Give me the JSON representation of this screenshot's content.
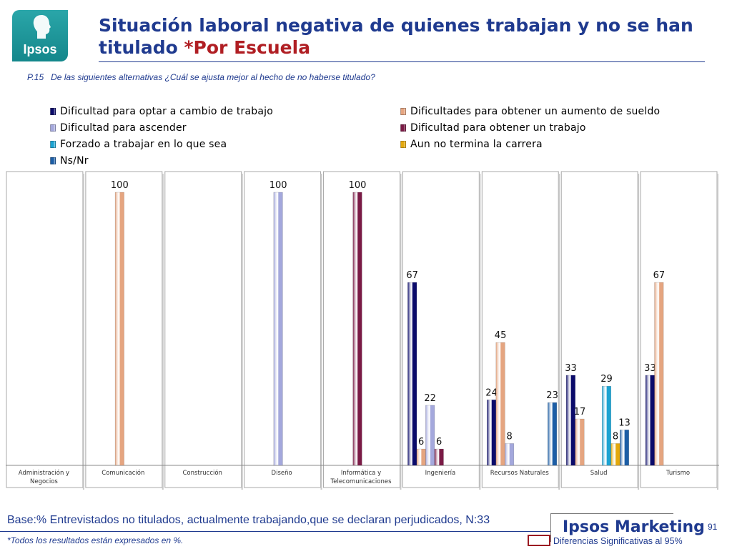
{
  "logo": {
    "text": "Ipsos"
  },
  "title": {
    "main": "Situación laboral negativa de quienes trabajan y no se han titulado ",
    "accent": "*Por Escuela"
  },
  "question": {
    "number": "P.15",
    "text": "De las siguientes alternativas ¿Cuál se ajusta mejor al hecho de no haberse titulado?"
  },
  "footer": {
    "base": "Base:% Entrevistados no titulados, actualmente trabajando,que se declaran perjudicados, N:33",
    "note": "*Todos los resultados están expresados en %.",
    "brand": "Ipsos Marketing",
    "page": "91",
    "significance": "Diferencias Significativas al 95%"
  },
  "colors": {
    "title": "#1f3a8f",
    "accent": "#b01e23"
  },
  "chart_data": {
    "type": "bar",
    "ylim": [
      0,
      100
    ],
    "categories": [
      "Administración y Negocios",
      "Comunicación",
      "Construcción",
      "Diseño",
      "Informática y Telecomunicaciones",
      "Ingeniería",
      "Recursos Naturales",
      "Salud",
      "Turismo"
    ],
    "series": [
      {
        "name": "Dificultad para optar a cambio de trabajo",
        "color": "#0b0b6b",
        "values": [
          null,
          null,
          null,
          null,
          null,
          67,
          24,
          33,
          33
        ]
      },
      {
        "name": "Dificultades para obtener un aumento de sueldo",
        "color": "#e5a580",
        "values": [
          null,
          100,
          null,
          null,
          null,
          6,
          45,
          17,
          67
        ]
      },
      {
        "name": "Dificultad para ascender",
        "color": "#a4a8dc",
        "values": [
          null,
          null,
          null,
          100,
          null,
          22,
          8,
          null,
          null
        ]
      },
      {
        "name": "Dificultad para obtener un trabajo",
        "color": "#7a1a45",
        "values": [
          null,
          null,
          null,
          null,
          100,
          6,
          null,
          null,
          null
        ]
      },
      {
        "name": "Forzado a trabajar en lo que sea",
        "color": "#1ba3d2",
        "values": [
          null,
          null,
          null,
          null,
          null,
          null,
          null,
          29,
          null
        ]
      },
      {
        "name": "Aun no termina la carrera",
        "color": "#e3a80c",
        "values": [
          null,
          null,
          null,
          null,
          null,
          null,
          null,
          8,
          null
        ]
      },
      {
        "name": "Ns/Nr",
        "color": "#1c5ea6",
        "values": [
          null,
          null,
          null,
          null,
          null,
          null,
          23,
          13,
          null
        ]
      }
    ],
    "legend_position": "top"
  }
}
